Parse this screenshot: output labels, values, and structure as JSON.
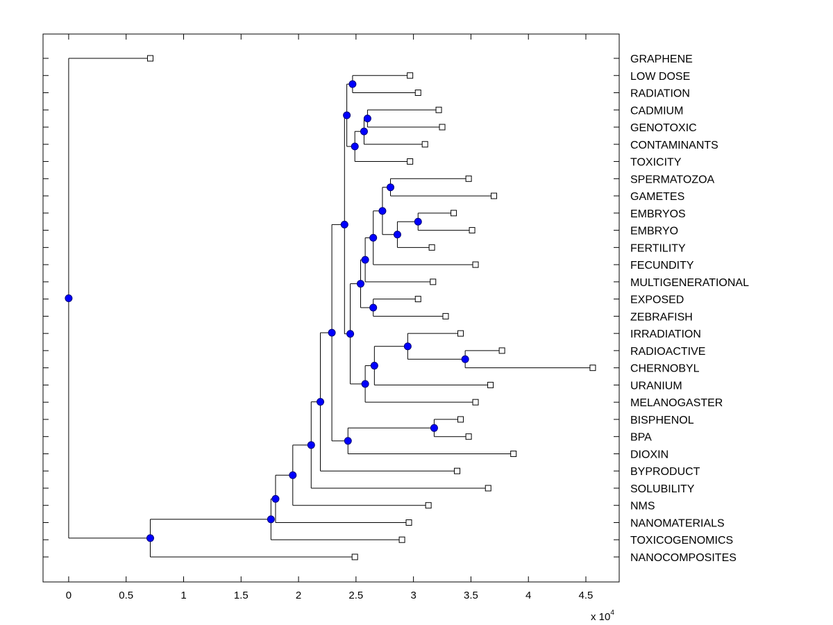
{
  "chart_data": {
    "type": "dendrogram",
    "title": "",
    "xlabel": "",
    "ylabel": "",
    "x_scale_multiplier_label": "x 10",
    "x_scale_exponent": "4",
    "xlim": [
      -0.223,
      4.79
    ],
    "x_ticks": [
      0,
      0.5,
      1,
      1.5,
      2,
      2.5,
      3,
      3.5,
      4,
      4.5
    ],
    "x_tick_labels": [
      "0",
      "0.5",
      "1",
      "1.5",
      "2",
      "2.5",
      "3",
      "3.5",
      "4",
      "4.5"
    ],
    "grid": false,
    "orientation": "left-to-right, leaf labels on right",
    "colors": {
      "node_fill": "#0000ff",
      "node_edge": "#00007a",
      "leaf_fill": "#ffffff",
      "line": "#000000"
    },
    "leaves": [
      {
        "id": "GRAPHENE",
        "label": "GRAPHENE",
        "x": 0.71
      },
      {
        "id": "LOW DOSE",
        "label": "LOW DOSE",
        "x": 2.97
      },
      {
        "id": "RADIATION",
        "label": "RADIATION",
        "x": 3.04
      },
      {
        "id": "CADMIUM",
        "label": "CADMIUM",
        "x": 3.22
      },
      {
        "id": "GENOTOXIC",
        "label": "GENOTOXIC",
        "x": 3.25
      },
      {
        "id": "CONTAMINANTS",
        "label": "CONTAMINANTS",
        "x": 3.1
      },
      {
        "id": "TOXICITY",
        "label": "TOXICITY",
        "x": 2.97
      },
      {
        "id": "SPERMATOZOA",
        "label": "SPERMATOZOA",
        "x": 3.48
      },
      {
        "id": "GAMETES",
        "label": "GAMETES",
        "x": 3.7
      },
      {
        "id": "EMBRYOS",
        "label": "EMBRYOS",
        "x": 3.35
      },
      {
        "id": "EMBRYO",
        "label": "EMBRYO",
        "x": 3.51
      },
      {
        "id": "FERTILITY",
        "label": "FERTILITY",
        "x": 3.16
      },
      {
        "id": "FECUNDITY",
        "label": "FECUNDITY",
        "x": 3.54
      },
      {
        "id": "MULTIGENERATIONAL",
        "label": "MULTIGENERATIONAL",
        "x": 3.17
      },
      {
        "id": "EXPOSED",
        "label": "EXPOSED",
        "x": 3.04
      },
      {
        "id": "ZEBRAFISH",
        "label": "ZEBRAFISH",
        "x": 3.28
      },
      {
        "id": "IRRADIATION",
        "label": "IRRADIATION",
        "x": 3.41
      },
      {
        "id": "RADIOACTIVE",
        "label": "RADIOACTIVE",
        "x": 3.77
      },
      {
        "id": "CHERNOBYL",
        "label": "CHERNOBYL",
        "x": 4.56
      },
      {
        "id": "URANIUM",
        "label": "URANIUM",
        "x": 3.67
      },
      {
        "id": "MELANOGASTER",
        "label": "MELANOGASTER",
        "x": 3.54
      },
      {
        "id": "BISPHENOL",
        "label": "BISPHENOL",
        "x": 3.41
      },
      {
        "id": "BPA",
        "label": "BPA",
        "x": 3.48
      },
      {
        "id": "DIOXIN",
        "label": "DIOXIN",
        "x": 3.87
      },
      {
        "id": "BYPRODUCT",
        "label": "BYPRODUCT",
        "x": 3.38
      },
      {
        "id": "SOLUBILITY",
        "label": "SOLUBILITY",
        "x": 3.65
      },
      {
        "id": "NMS",
        "label": "NMS",
        "x": 3.13
      },
      {
        "id": "NANOMATERIALS",
        "label": "NANOMATERIALS",
        "x": 2.96
      },
      {
        "id": "TOXICOGENOMICS",
        "label": "TOXICOGENOMICS",
        "x": 2.9
      },
      {
        "id": "NANOCOMPOSITES",
        "label": "NANOCOMPOSITES",
        "x": 2.49
      }
    ],
    "nodes": [
      {
        "id": "n_lr",
        "x": 2.47,
        "children": [
          "LOW DOSE",
          "RADIATION"
        ]
      },
      {
        "id": "n_cg",
        "x": 2.6,
        "children": [
          "CADMIUM",
          "GENOTOXIC"
        ]
      },
      {
        "id": "n_cgc",
        "x": 2.57,
        "children": [
          "n_cg",
          "CONTAMINANTS"
        ]
      },
      {
        "id": "n_cgct",
        "x": 2.49,
        "children": [
          "n_cgc",
          "TOXICITY"
        ]
      },
      {
        "id": "n_top",
        "x": 2.42,
        "children": [
          "n_lr",
          "n_cgct"
        ]
      },
      {
        "id": "n_sg",
        "x": 2.8,
        "children": [
          "SPERMATOZOA",
          "GAMETES"
        ]
      },
      {
        "id": "n_ee",
        "x": 3.04,
        "children": [
          "EMBRYOS",
          "EMBRYO"
        ]
      },
      {
        "id": "n_eef",
        "x": 2.86,
        "children": [
          "n_ee",
          "FERTILITY"
        ]
      },
      {
        "id": "n_sgeef",
        "x": 2.73,
        "children": [
          "n_sg",
          "n_eef"
        ]
      },
      {
        "id": "n_fec",
        "x": 2.65,
        "children": [
          "n_sgeef",
          "FECUNDITY"
        ]
      },
      {
        "id": "n_multi",
        "x": 2.58,
        "children": [
          "n_fec",
          "MULTIGENERATIONAL"
        ]
      },
      {
        "id": "n_ez",
        "x": 2.65,
        "children": [
          "EXPOSED",
          "ZEBRAFISH"
        ]
      },
      {
        "id": "n_mid",
        "x": 2.54,
        "children": [
          "n_multi",
          "n_ez"
        ]
      },
      {
        "id": "n_rc",
        "x": 3.45,
        "children": [
          "RADIOACTIVE",
          "CHERNOBYL"
        ]
      },
      {
        "id": "n_irc",
        "x": 2.95,
        "children": [
          "IRRADIATION",
          "n_rc"
        ]
      },
      {
        "id": "n_ur",
        "x": 2.66,
        "children": [
          "n_irc",
          "URANIUM"
        ]
      },
      {
        "id": "n_mel",
        "x": 2.58,
        "children": [
          "n_ur",
          "MELANOGASTER"
        ]
      },
      {
        "id": "n_c",
        "x": 2.45,
        "children": [
          "n_mid",
          "n_mel"
        ]
      },
      {
        "id": "n_b",
        "x": 2.4,
        "children": [
          "n_top",
          "n_c"
        ]
      },
      {
        "id": "n_bb",
        "x": 3.18,
        "children": [
          "BISPHENOL",
          "BPA"
        ]
      },
      {
        "id": "n_bbd",
        "x": 2.43,
        "children": [
          "n_bb",
          "DIOXIN"
        ]
      },
      {
        "id": "n_d",
        "x": 2.29,
        "children": [
          "n_b",
          "n_bbd"
        ]
      },
      {
        "id": "n_f",
        "x": 2.19,
        "children": [
          "n_d",
          "BYPRODUCT"
        ]
      },
      {
        "id": "n_g",
        "x": 2.11,
        "children": [
          "n_f",
          "SOLUBILITY"
        ]
      },
      {
        "id": "n_h",
        "x": 1.95,
        "children": [
          "n_g",
          "NMS"
        ]
      },
      {
        "id": "n_i",
        "x": 1.8,
        "children": [
          "n_h",
          "NANOMATERIALS"
        ]
      },
      {
        "id": "n_j",
        "x": 1.76,
        "children": [
          "n_i",
          "TOXICOGENOMICS"
        ]
      },
      {
        "id": "n_k",
        "x": 0.71,
        "children": [
          "n_j",
          "NANOCOMPOSITES"
        ]
      },
      {
        "id": "root",
        "x": 0.0,
        "children": [
          "GRAPHENE",
          "n_k"
        ]
      }
    ]
  }
}
